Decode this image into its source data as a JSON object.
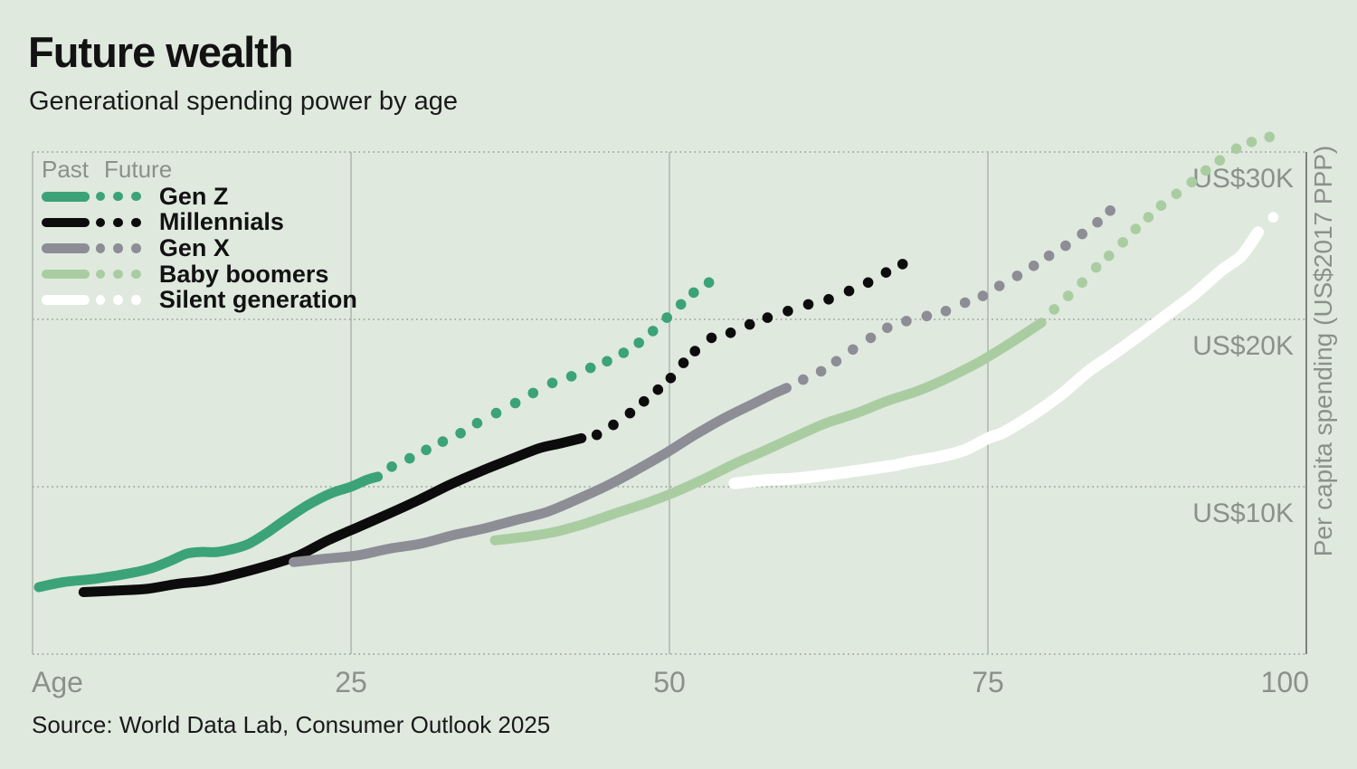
{
  "title": "Future wealth",
  "subtitle": "Generational spending power by age",
  "source": "Source: World Data Lab, Consumer Outlook 2025",
  "legend": {
    "past_label": "Past",
    "future_label": "Future"
  },
  "colors": {
    "background": "#dfe9de",
    "grid_solid": "#aeb6ad",
    "grid_dotted": "#98a096",
    "right_border": "#7d837c",
    "tick_text": "#8b918a",
    "heading_text": "#121212",
    "gen_z": "#3ba377",
    "millennials": "#0c0c0c",
    "gen_x": "#8d8d96",
    "baby_boomers": "#a9cda1",
    "silent_generation": "#ffffff"
  },
  "x_axis": {
    "label": "Age",
    "ticks": [
      25,
      50,
      75,
      100
    ],
    "range": [
      0,
      100
    ]
  },
  "y_axis": {
    "label": "Per capita spending (US$2017 PPP)",
    "ticks": [
      {
        "value": 10,
        "label": "US$10K"
      },
      {
        "value": 20,
        "label": "US$20K"
      },
      {
        "value": 30,
        "label": "US$30K"
      }
    ],
    "range_thousands": [
      0,
      33
    ]
  },
  "chart_data": {
    "type": "line",
    "title": "Future wealth — Generational spending power by age",
    "xlabel": "Age",
    "ylabel": "Per capita spending (US$2017 PPP)",
    "x_unit": "age in years",
    "y_unit": "US$ thousands (2017 PPP)",
    "xlim": [
      0,
      100
    ],
    "ylim_thousands": [
      0,
      33
    ],
    "legend_position": "top-left",
    "grid": "horizontal dotted at 10K/20K/30K, vertical solid at 25/50/75",
    "series": [
      {
        "name": "Gen Z",
        "color": "#3ba377",
        "line_width": 11,
        "past": [
          [
            0.5,
            4.0
          ],
          [
            2.4,
            4.3
          ],
          [
            4.9,
            4.5
          ],
          [
            7.4,
            4.8
          ],
          [
            9.2,
            5.1
          ],
          [
            10.9,
            5.6
          ],
          [
            12.1,
            6.0
          ],
          [
            13.2,
            6.1
          ],
          [
            14.5,
            6.1
          ],
          [
            15.8,
            6.3
          ],
          [
            17.0,
            6.6
          ],
          [
            18.5,
            7.3
          ],
          [
            19.8,
            8.0
          ],
          [
            21.6,
            8.9
          ],
          [
            23.4,
            9.6
          ],
          [
            25.0,
            10.0
          ],
          [
            26.2,
            10.4
          ],
          [
            27.1,
            10.6
          ]
        ],
        "future": [
          [
            28.2,
            11.2
          ],
          [
            29.6,
            11.7
          ],
          [
            30.9,
            12.2
          ],
          [
            32.2,
            12.7
          ],
          [
            33.6,
            13.2
          ],
          [
            34.9,
            13.8
          ],
          [
            36.4,
            14.4
          ],
          [
            37.9,
            15.0
          ],
          [
            39.3,
            15.6
          ],
          [
            40.8,
            16.2
          ],
          [
            42.3,
            16.6
          ],
          [
            43.8,
            17.1
          ],
          [
            45.1,
            17.5
          ],
          [
            46.4,
            18.0
          ],
          [
            47.6,
            18.6
          ],
          [
            48.7,
            19.3
          ],
          [
            49.8,
            20.1
          ],
          [
            50.9,
            20.9
          ],
          [
            51.9,
            21.6
          ],
          [
            53.1,
            22.2
          ]
        ]
      },
      {
        "name": "Millennials",
        "color": "#0c0c0c",
        "line_width": 11,
        "past": [
          [
            4.0,
            3.7
          ],
          [
            6.7,
            3.8
          ],
          [
            9.0,
            3.9
          ],
          [
            11.4,
            4.2
          ],
          [
            13.8,
            4.4
          ],
          [
            16.1,
            4.8
          ],
          [
            18.5,
            5.3
          ],
          [
            20.9,
            5.9
          ],
          [
            23.2,
            6.8
          ],
          [
            25.6,
            7.6
          ],
          [
            28.0,
            8.4
          ],
          [
            30.3,
            9.2
          ],
          [
            32.7,
            10.1
          ],
          [
            35.1,
            10.9
          ],
          [
            37.4,
            11.6
          ],
          [
            39.8,
            12.3
          ],
          [
            41.5,
            12.6
          ],
          [
            43.1,
            12.9
          ]
        ],
        "future": [
          [
            44.3,
            13.1
          ],
          [
            45.6,
            13.7
          ],
          [
            46.9,
            14.4
          ],
          [
            48.0,
            15.1
          ],
          [
            49.1,
            15.8
          ],
          [
            50.1,
            16.5
          ],
          [
            51.1,
            17.4
          ],
          [
            52.0,
            18.1
          ],
          [
            53.3,
            18.9
          ],
          [
            54.8,
            19.2
          ],
          [
            56.3,
            19.7
          ],
          [
            57.7,
            20.1
          ],
          [
            59.3,
            20.5
          ],
          [
            60.9,
            20.9
          ],
          [
            62.5,
            21.2
          ],
          [
            64.1,
            21.7
          ],
          [
            65.6,
            22.2
          ],
          [
            67.0,
            22.8
          ],
          [
            68.3,
            23.3
          ]
        ]
      },
      {
        "name": "Gen X",
        "color": "#8d8d96",
        "line_width": 11,
        "past": [
          [
            20.5,
            5.5
          ],
          [
            23.0,
            5.7
          ],
          [
            25.5,
            5.9
          ],
          [
            28.0,
            6.3
          ],
          [
            30.5,
            6.6
          ],
          [
            33.0,
            7.1
          ],
          [
            35.4,
            7.5
          ],
          [
            37.9,
            8.0
          ],
          [
            40.4,
            8.5
          ],
          [
            42.9,
            9.3
          ],
          [
            45.2,
            10.1
          ],
          [
            47.4,
            11.0
          ],
          [
            49.7,
            12.0
          ],
          [
            52.0,
            13.1
          ],
          [
            54.3,
            14.1
          ],
          [
            56.7,
            15.0
          ],
          [
            58.0,
            15.5
          ],
          [
            59.2,
            15.9
          ]
        ],
        "future": [
          [
            60.5,
            16.4
          ],
          [
            61.9,
            16.9
          ],
          [
            63.1,
            17.5
          ],
          [
            64.4,
            18.2
          ],
          [
            65.8,
            18.9
          ],
          [
            67.1,
            19.5
          ],
          [
            68.6,
            19.9
          ],
          [
            70.2,
            20.2
          ],
          [
            71.7,
            20.5
          ],
          [
            73.2,
            21.0
          ],
          [
            74.6,
            21.4
          ],
          [
            75.9,
            22.0
          ],
          [
            77.3,
            22.6
          ],
          [
            78.6,
            23.2
          ],
          [
            79.8,
            23.8
          ],
          [
            81.1,
            24.4
          ],
          [
            82.4,
            25.1
          ],
          [
            83.6,
            25.8
          ],
          [
            84.6,
            26.5
          ]
        ]
      },
      {
        "name": "Baby boomers",
        "color": "#a9cda1",
        "line_width": 11,
        "past": [
          [
            36.3,
            6.8
          ],
          [
            38.6,
            7.0
          ],
          [
            41.0,
            7.3
          ],
          [
            43.4,
            7.8
          ],
          [
            45.7,
            8.4
          ],
          [
            48.1,
            9.0
          ],
          [
            50.5,
            9.7
          ],
          [
            52.8,
            10.5
          ],
          [
            55.2,
            11.4
          ],
          [
            57.6,
            12.2
          ],
          [
            59.9,
            13.0
          ],
          [
            62.3,
            13.8
          ],
          [
            64.7,
            14.4
          ],
          [
            67.0,
            15.1
          ],
          [
            69.4,
            15.7
          ],
          [
            71.3,
            16.3
          ],
          [
            73.7,
            17.2
          ],
          [
            75.1,
            17.8
          ],
          [
            77.2,
            18.8
          ],
          [
            79.2,
            19.8
          ]
        ],
        "future": [
          [
            80.2,
            20.6
          ],
          [
            81.3,
            21.4
          ],
          [
            82.4,
            22.2
          ],
          [
            83.5,
            23.1
          ],
          [
            84.5,
            23.8
          ],
          [
            85.6,
            24.6
          ],
          [
            86.6,
            25.4
          ],
          [
            87.6,
            26.1
          ],
          [
            88.6,
            26.8
          ],
          [
            89.8,
            27.5
          ],
          [
            91.0,
            28.2
          ],
          [
            92.1,
            28.9
          ],
          [
            93.2,
            29.5
          ],
          [
            94.5,
            30.2
          ],
          [
            95.7,
            30.6
          ],
          [
            97.1,
            30.9
          ]
        ]
      },
      {
        "name": "Silent generation",
        "color": "#ffffff",
        "line_width": 13,
        "past": [
          [
            55.1,
            10.2
          ],
          [
            57.6,
            10.4
          ],
          [
            59.9,
            10.5
          ],
          [
            62.3,
            10.7
          ],
          [
            64.2,
            10.9
          ],
          [
            66.1,
            11.1
          ],
          [
            67.8,
            11.3
          ],
          [
            69.0,
            11.5
          ],
          [
            71.3,
            11.8
          ],
          [
            73.2,
            12.2
          ],
          [
            75.0,
            12.9
          ],
          [
            76.1,
            13.2
          ],
          [
            77.7,
            13.9
          ],
          [
            79.3,
            14.7
          ],
          [
            80.9,
            15.6
          ],
          [
            82.9,
            16.9
          ],
          [
            84.8,
            17.9
          ],
          [
            87.0,
            19.1
          ],
          [
            89.1,
            20.3
          ],
          [
            91.2,
            21.5
          ],
          [
            93.3,
            22.9
          ],
          [
            94.9,
            23.8
          ],
          [
            96.2,
            25.2
          ]
        ],
        "future": [
          [
            97.4,
            26.1
          ]
        ]
      }
    ]
  }
}
